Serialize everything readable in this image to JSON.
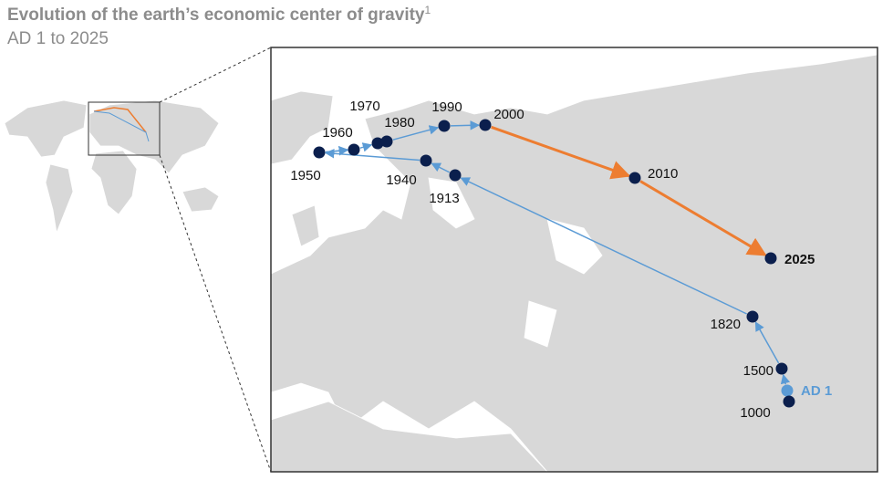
{
  "title": "Evolution of the earth’s economic center of gravity",
  "title_note": "1",
  "subtitle": "AD 1 to 2025",
  "points": [
    "AD 1",
    "1000",
    "1500",
    "1820",
    "1913",
    "1940",
    "1950",
    "1960",
    "1970",
    "1980",
    "1990",
    "2000",
    "2010",
    "2025"
  ]
}
